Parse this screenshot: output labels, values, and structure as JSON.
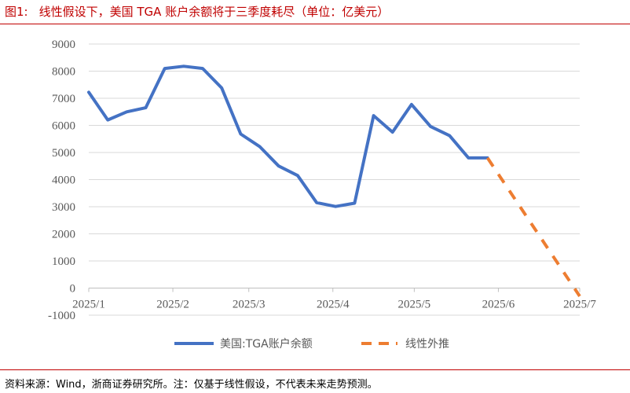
{
  "header": {
    "figure_number": "图1:",
    "title": "线性假设下，美国 TGA 账户余额将于三季度耗尽（单位：亿美元）"
  },
  "footer": {
    "source": "资料来源：Wind，浙商证券研究所。注：仅基于线性假设，不代表未来走势预测。"
  },
  "colors": {
    "accent": "#c00000",
    "actual": "#4472c4",
    "forecast": "#ed7d31",
    "grid": "#d9d9d9"
  },
  "chart_data": {
    "type": "line",
    "title": "",
    "xlabel": "",
    "ylabel": "",
    "x_ticks": [
      "2025/1",
      "2025/2",
      "2025/3",
      "2025/4",
      "2025/5",
      "2025/6",
      "2025/7"
    ],
    "xlim": [
      "2025-01-01",
      "2025-07-01"
    ],
    "ylim": [
      -1000,
      9000
    ],
    "y_ticks": [
      "-1000",
      "0",
      "1000",
      "2000",
      "3000",
      "4000",
      "5000",
      "6000",
      "7000",
      "8000",
      "9000"
    ],
    "grid": "horizontal",
    "legend": "bottom",
    "series": [
      {
        "name": "美国:TGA账户余额",
        "style": "solid",
        "x": [
          "2025-01-01",
          "2025-01-08",
          "2025-01-15",
          "2025-01-22",
          "2025-01-29",
          "2025-02-05",
          "2025-02-12",
          "2025-02-19",
          "2025-02-26",
          "2025-03-05",
          "2025-03-12",
          "2025-03-19",
          "2025-03-26",
          "2025-04-02",
          "2025-04-09",
          "2025-04-16",
          "2025-04-23",
          "2025-04-30",
          "2025-05-07",
          "2025-05-14",
          "2025-05-21",
          "2025-05-28"
        ],
        "values": [
          7220,
          6200,
          6500,
          6650,
          8100,
          8180,
          8100,
          7380,
          5680,
          5220,
          4500,
          4150,
          3150,
          3010,
          3130,
          6360,
          5750,
          6770,
          5960,
          5620,
          4800,
          4800
        ]
      },
      {
        "name": "线性外推",
        "style": "dashed",
        "x": [
          "2025-05-28",
          "2025-07-01"
        ],
        "values": [
          4800,
          -300
        ]
      }
    ]
  }
}
